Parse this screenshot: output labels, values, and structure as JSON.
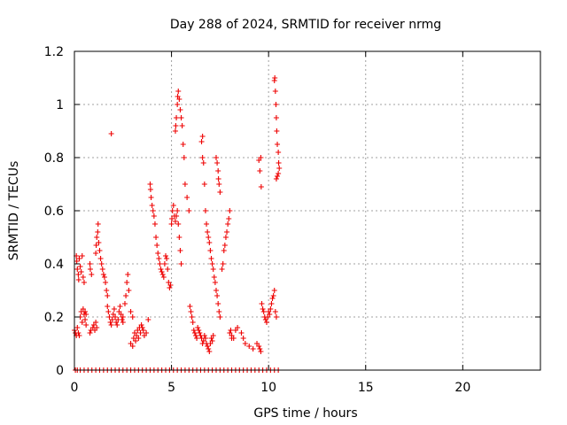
{
  "chart_data": {
    "type": "scatter",
    "title": "Day 288 of 2024, SRMTID for receiver nrmg",
    "xlabel": "GPS time / hours",
    "ylabel": "SRMTID / TECUs",
    "xlim": [
      0,
      24
    ],
    "ylim": [
      0,
      1.2
    ],
    "xticks": [
      0,
      5,
      10,
      15,
      20
    ],
    "xtick_labels": [
      "0",
      "5",
      "10",
      "15",
      "20"
    ],
    "yticks": [
      0,
      0.2,
      0.4,
      0.6,
      0.8,
      1.0,
      1.2
    ],
    "ytick_labels": [
      "0",
      "0.2",
      "0.4",
      "0.6",
      "0.8",
      "1",
      "1.2"
    ],
    "grid": true,
    "legend": "none",
    "marker": "plus",
    "color": "#ee0000",
    "series": [
      {
        "x": [
          0.0,
          0.05,
          0.1,
          0.15,
          0.2,
          0.25,
          0.3,
          0.35,
          0.4,
          0.45,
          0.5,
          0.55,
          0.6,
          0.1,
          0.12,
          0.15,
          0.2,
          0.22,
          0.25,
          0.3,
          0.35,
          0.4,
          0.45,
          0.5,
          0.55,
          0.6,
          0.8,
          0.85,
          0.8,
          0.82,
          0.88,
          0.95,
          1.0,
          1.05,
          1.1,
          1.15,
          1.1,
          1.12,
          1.15,
          1.2,
          1.22,
          1.25,
          1.3,
          1.35,
          1.4,
          1.45,
          1.5,
          1.55,
          1.6,
          1.65,
          1.7,
          1.9,
          1.7,
          1.75,
          1.8,
          1.85,
          1.9,
          1.95,
          2.0,
          2.05,
          2.1,
          2.15,
          2.2,
          2.25,
          2.3,
          2.35,
          2.4,
          2.45,
          2.5,
          2.5,
          2.6,
          2.65,
          2.7,
          2.75,
          2.8,
          2.9,
          3.0,
          2.9,
          3.0,
          3.05,
          3.1,
          3.15,
          3.2,
          3.25,
          3.3,
          3.35,
          3.4,
          3.45,
          3.5,
          3.55,
          3.6,
          3.7,
          3.8,
          3.9,
          3.92,
          3.95,
          4.0,
          4.05,
          4.1,
          4.15,
          4.2,
          4.25,
          4.3,
          4.35,
          4.4,
          4.45,
          4.5,
          4.55,
          4.6,
          4.65,
          4.7,
          4.75,
          4.8,
          4.85,
          4.9,
          4.95,
          5.0,
          5.02,
          5.05,
          5.1,
          5.15,
          5.2,
          5.25,
          5.3,
          5.35,
          5.4,
          5.45,
          5.5,
          5.2,
          5.22,
          5.25,
          5.3,
          5.32,
          5.35,
          5.4,
          5.45,
          5.5,
          5.55,
          5.6,
          5.65,
          5.7,
          5.8,
          5.9,
          5.95,
          6.0,
          6.05,
          6.1,
          6.15,
          6.2,
          6.25,
          6.3,
          6.35,
          6.4,
          6.45,
          6.5,
          6.55,
          6.6,
          6.65,
          6.7,
          6.75,
          6.8,
          6.85,
          6.9,
          6.95,
          7.0,
          7.05,
          7.1,
          7.15,
          6.55,
          6.6,
          6.6,
          6.65,
          6.7,
          6.75,
          6.8,
          6.85,
          6.9,
          6.95,
          7.0,
          7.05,
          7.1,
          7.15,
          7.2,
          7.25,
          7.3,
          7.35,
          7.4,
          7.45,
          7.5,
          7.3,
          7.35,
          7.4,
          7.42,
          7.45,
          7.5,
          7.6,
          7.65,
          7.7,
          7.75,
          7.8,
          7.85,
          7.9,
          7.95,
          8.0,
          8.05,
          8.1,
          8.0,
          8.1,
          8.2,
          8.3,
          8.4,
          8.6,
          8.7,
          8.8,
          9.0,
          9.2,
          9.4,
          9.5,
          9.55,
          9.6,
          9.6,
          9.5,
          9.55,
          9.62,
          9.65,
          9.7,
          9.75,
          9.8,
          9.85,
          9.9,
          9.95,
          10.0,
          10.05,
          10.1,
          10.15,
          10.2,
          10.25,
          10.3,
          10.35,
          10.4,
          10.3,
          10.32,
          10.35,
          10.38,
          10.4,
          10.42,
          10.45,
          10.5,
          10.52,
          10.55,
          10.5,
          10.45,
          10.4,
          0.05,
          0.15,
          0.3,
          0.5,
          0.7,
          0.9,
          1.1,
          1.3,
          1.5,
          1.7,
          1.9,
          2.1,
          2.3,
          2.5,
          2.7,
          2.9,
          3.1,
          3.3,
          3.5,
          3.7,
          3.9,
          4.1,
          4.3,
          4.5,
          4.7,
          4.9,
          5.1,
          5.3,
          5.5,
          5.7,
          5.9,
          6.1,
          6.3,
          6.5,
          6.7,
          6.9,
          7.1,
          7.3,
          7.5,
          7.7,
          7.9,
          8.1,
          8.3,
          8.5,
          8.7,
          8.9,
          9.1,
          9.3,
          9.5,
          9.7,
          9.9,
          10.1,
          10.3,
          10.5
        ],
        "y": [
          0.15,
          0.14,
          0.13,
          0.16,
          0.14,
          0.13,
          0.2,
          0.22,
          0.18,
          0.23,
          0.21,
          0.19,
          0.17,
          0.43,
          0.41,
          0.38,
          0.36,
          0.34,
          0.42,
          0.39,
          0.37,
          0.43,
          0.35,
          0.33,
          0.22,
          0.21,
          0.14,
          0.15,
          0.4,
          0.38,
          0.36,
          0.16,
          0.17,
          0.15,
          0.18,
          0.16,
          0.44,
          0.47,
          0.5,
          0.52,
          0.55,
          0.48,
          0.45,
          0.42,
          0.4,
          0.38,
          0.36,
          0.35,
          0.33,
          0.3,
          0.28,
          0.89,
          0.24,
          0.22,
          0.2,
          0.18,
          0.17,
          0.19,
          0.21,
          0.23,
          0.2,
          0.18,
          0.17,
          0.19,
          0.22,
          0.24,
          0.21,
          0.19,
          0.18,
          0.2,
          0.25,
          0.28,
          0.33,
          0.36,
          0.3,
          0.22,
          0.2,
          0.1,
          0.09,
          0.12,
          0.14,
          0.11,
          0.13,
          0.15,
          0.12,
          0.16,
          0.14,
          0.17,
          0.16,
          0.15,
          0.13,
          0.14,
          0.19,
          0.7,
          0.68,
          0.65,
          0.62,
          0.6,
          0.58,
          0.55,
          0.5,
          0.47,
          0.44,
          0.42,
          0.4,
          0.38,
          0.37,
          0.36,
          0.35,
          0.4,
          0.43,
          0.42,
          0.38,
          0.33,
          0.31,
          0.32,
          0.55,
          0.57,
          0.6,
          0.62,
          0.58,
          0.56,
          0.58,
          0.6,
          0.55,
          0.5,
          0.45,
          0.4,
          0.9,
          0.92,
          0.95,
          1.0,
          1.03,
          1.05,
          1.02,
          0.98,
          0.95,
          0.92,
          0.85,
          0.8,
          0.7,
          0.65,
          0.6,
          0.24,
          0.22,
          0.2,
          0.18,
          0.15,
          0.14,
          0.13,
          0.12,
          0.16,
          0.15,
          0.14,
          0.13,
          0.12,
          0.1,
          0.11,
          0.13,
          0.12,
          0.1,
          0.09,
          0.08,
          0.07,
          0.1,
          0.12,
          0.11,
          0.13,
          0.86,
          0.88,
          0.8,
          0.78,
          0.7,
          0.6,
          0.55,
          0.52,
          0.5,
          0.48,
          0.45,
          0.42,
          0.4,
          0.38,
          0.35,
          0.33,
          0.3,
          0.28,
          0.25,
          0.22,
          0.2,
          0.8,
          0.78,
          0.75,
          0.72,
          0.7,
          0.67,
          0.38,
          0.4,
          0.45,
          0.47,
          0.5,
          0.52,
          0.55,
          0.57,
          0.6,
          0.15,
          0.12,
          0.14,
          0.13,
          0.12,
          0.15,
          0.16,
          0.14,
          0.12,
          0.1,
          0.09,
          0.08,
          0.1,
          0.09,
          0.08,
          0.07,
          0.8,
          0.79,
          0.75,
          0.69,
          0.25,
          0.23,
          0.22,
          0.2,
          0.19,
          0.18,
          0.2,
          0.22,
          0.21,
          0.23,
          0.25,
          0.27,
          0.28,
          0.3,
          0.22,
          0.2,
          1.09,
          1.1,
          1.05,
          1.0,
          0.95,
          0.9,
          0.85,
          0.82,
          0.78,
          0.76,
          0.74,
          0.73,
          0.72,
          0,
          0,
          0,
          0,
          0,
          0,
          0,
          0,
          0,
          0,
          0,
          0,
          0,
          0,
          0,
          0,
          0,
          0,
          0,
          0,
          0,
          0,
          0,
          0,
          0,
          0,
          0,
          0,
          0,
          0,
          0,
          0,
          0,
          0,
          0,
          0,
          0,
          0,
          0,
          0,
          0,
          0,
          0,
          0,
          0,
          0,
          0,
          0,
          0,
          0,
          0,
          0,
          0,
          0
        ]
      }
    ]
  }
}
